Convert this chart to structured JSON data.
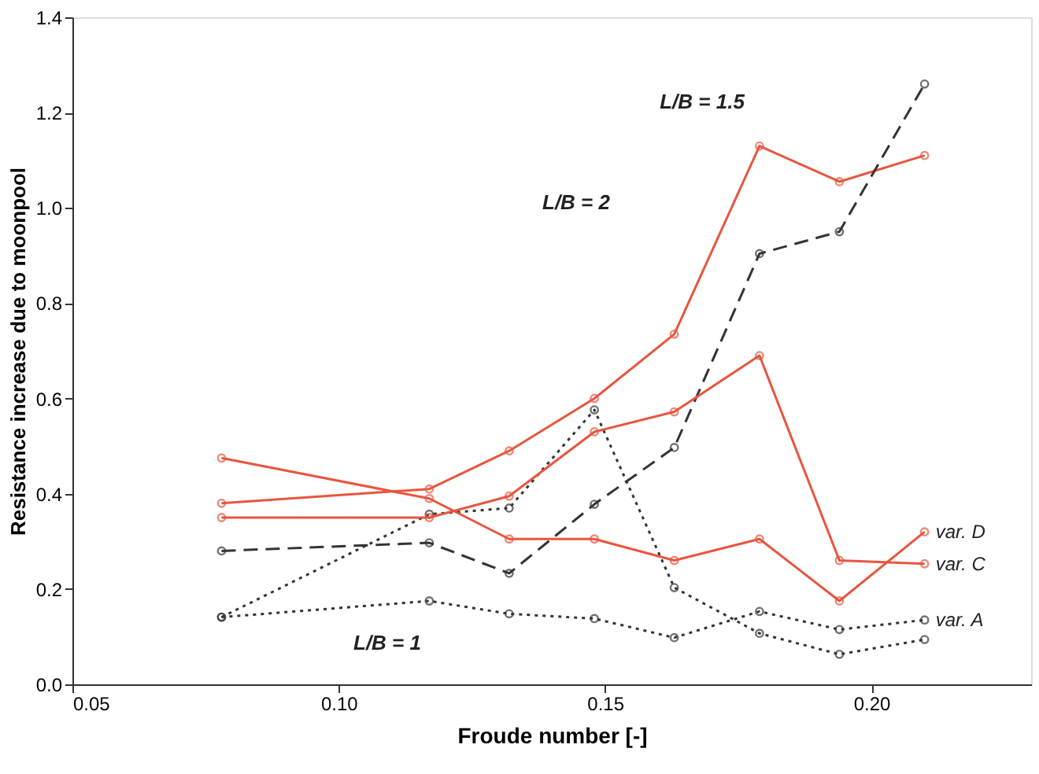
{
  "chart_data": {
    "type": "line",
    "xlabel": "Froude number [-]",
    "ylabel": "Resistance increase due to moonpool",
    "x": [
      0.078,
      0.117,
      0.132,
      0.148,
      0.163,
      0.179,
      0.194,
      0.21
    ],
    "xlim": [
      0.05,
      0.23
    ],
    "ylim": [
      0,
      1.4
    ],
    "xticks": [
      {
        "value": 0.05,
        "label": "0.05"
      },
      {
        "value": 0.1,
        "label": "0.10"
      },
      {
        "value": 0.15,
        "label": "0.15"
      },
      {
        "value": 0.2,
        "label": "0.20"
      }
    ],
    "yticks": [
      {
        "value": 0,
        "label": "0.0"
      },
      {
        "value": 0.2,
        "label": "0.2"
      },
      {
        "value": 0.4,
        "label": "0.4"
      },
      {
        "value": 0.6,
        "label": "0.6"
      },
      {
        "value": 0.8,
        "label": "0.8"
      },
      {
        "value": 1.0,
        "label": "1.0"
      },
      {
        "value": 1.2,
        "label": "1.2"
      },
      {
        "value": 1.4,
        "label": "1.4"
      }
    ],
    "grid": false,
    "marker": "circle",
    "series": [
      {
        "color": "#e8553e",
        "line_style": "solid",
        "values": [
          0.38,
          0.41,
          0.49,
          0.6,
          0.735,
          1.13,
          1.055,
          1.11
        ]
      },
      {
        "color": "#333333",
        "line_style": "dashed",
        "values": [
          0.28,
          0.297,
          0.233,
          0.378,
          0.497,
          0.904,
          0.95,
          1.26
        ]
      },
      {
        "color": "#333333",
        "line_style": "dotted",
        "values": [
          0.141,
          0.357,
          0.37,
          0.576,
          0.203,
          0.107,
          0.063,
          0.094
        ]
      },
      {
        "name": "var. D",
        "color": "#e8553e",
        "line_style": "solid",
        "values": [
          0.475,
          0.39,
          0.305,
          0.305,
          0.26,
          0.305,
          0.175,
          0.32
        ]
      },
      {
        "name": "var. C",
        "color": "#e8553e",
        "line_style": "solid",
        "values": [
          0.35,
          0.35,
          0.395,
          0.53,
          0.572,
          0.69,
          0.26,
          0.253
        ]
      },
      {
        "name": "var. A",
        "color": "#333333",
        "line_style": "dotted",
        "values": [
          0.141,
          0.175,
          0.148,
          0.138,
          0.098,
          0.153,
          0.115,
          0.135
        ]
      }
    ],
    "annotations": [
      "L/B = 1.5",
      "L/B = 2",
      "L/B = 1"
    ]
  }
}
